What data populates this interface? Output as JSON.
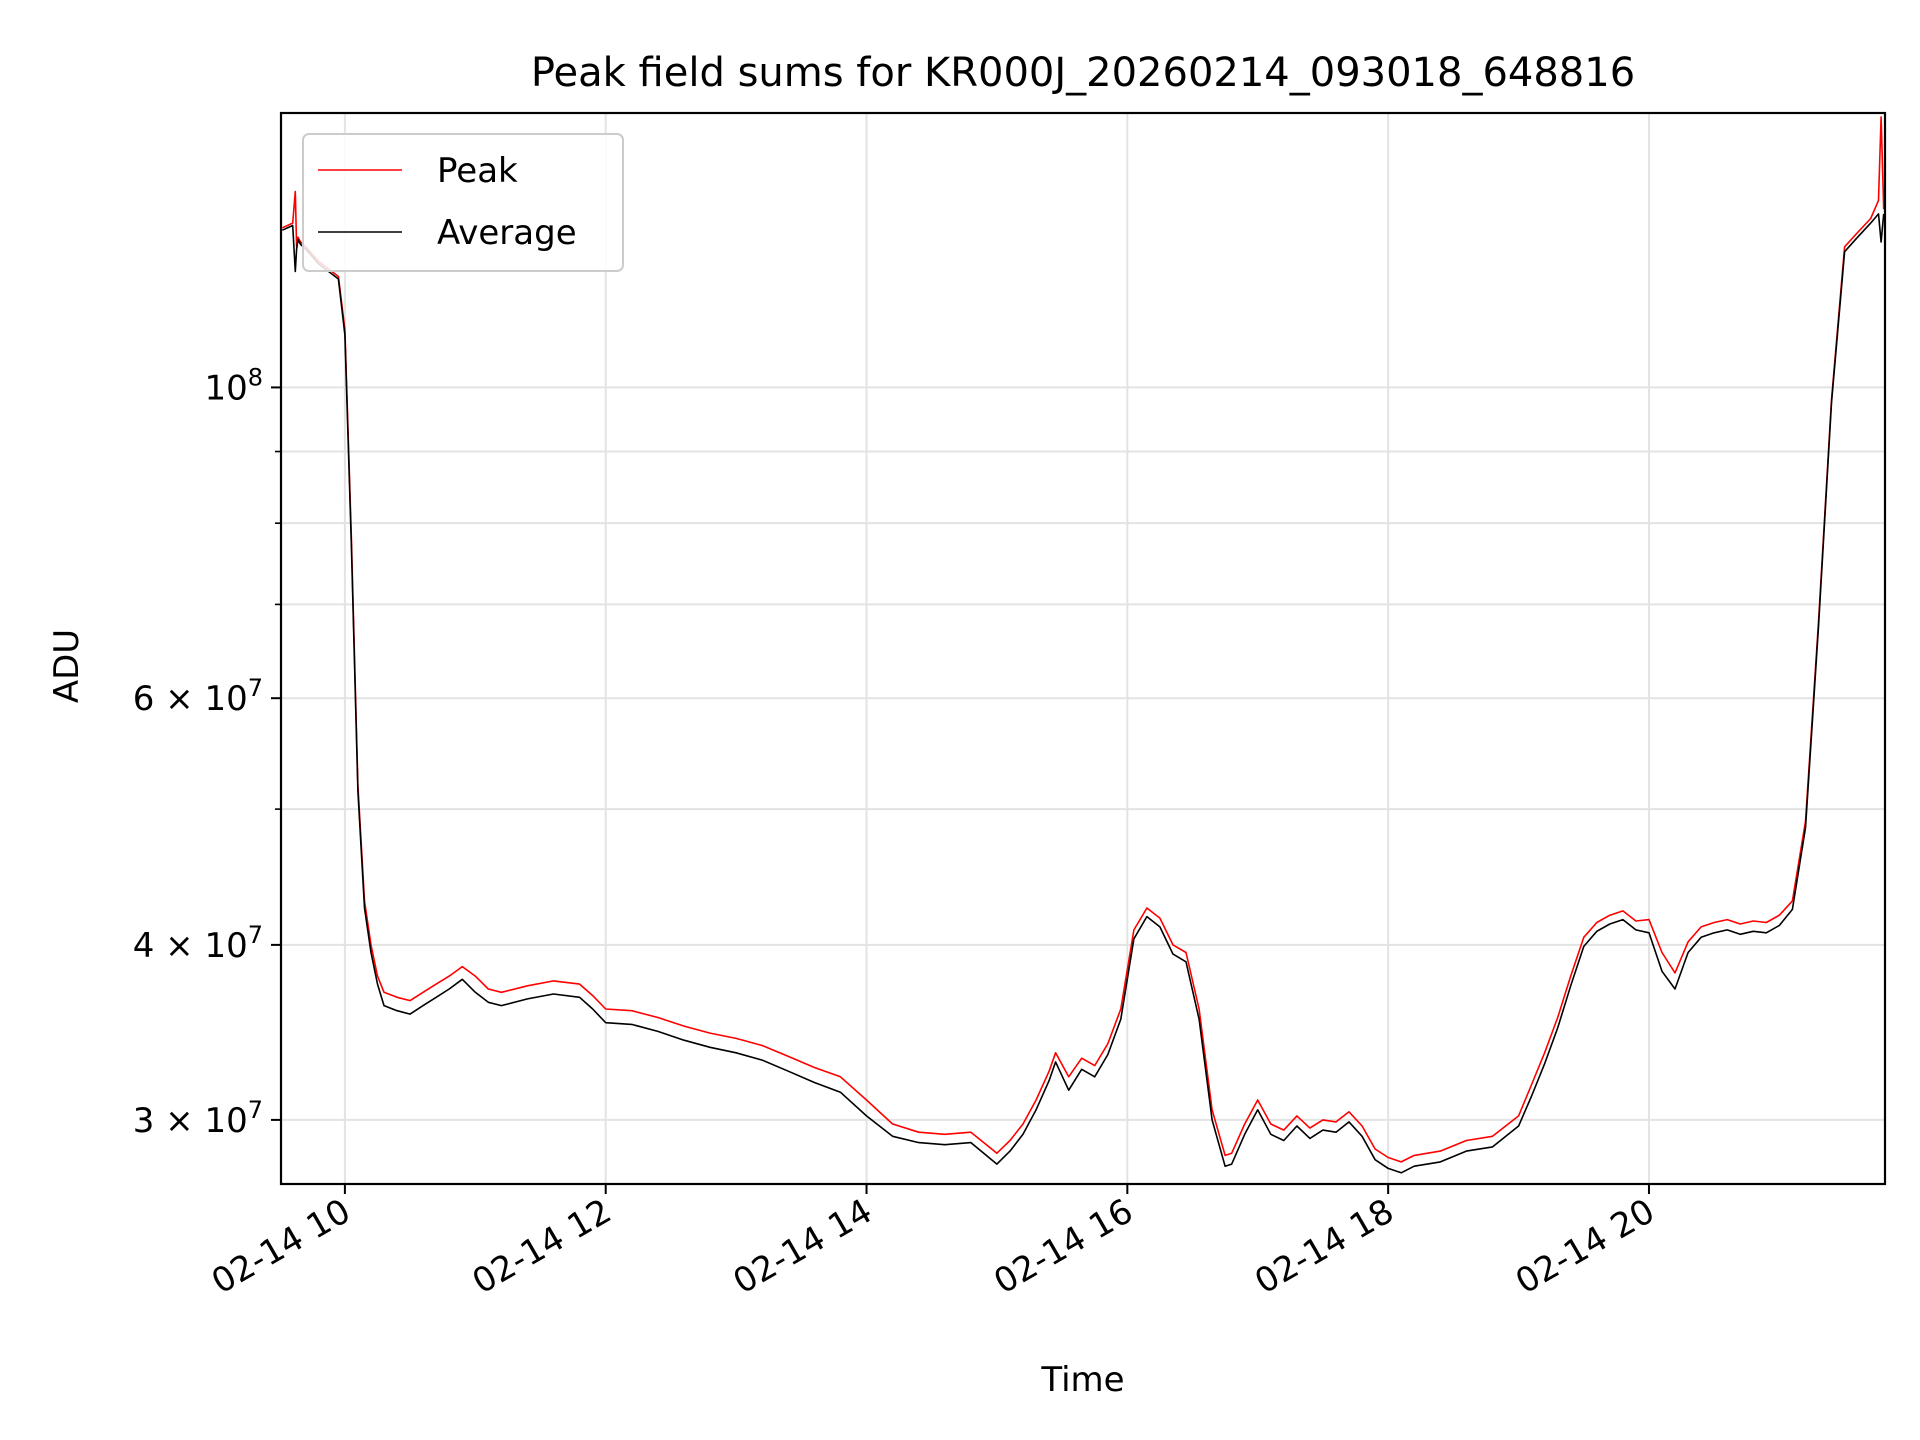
{
  "colors": {
    "peak": "#ff0000",
    "average": "#000000",
    "grid": "#e3e3e3",
    "frame": "#000000"
  },
  "chart_data": {
    "type": "line",
    "title": "Peak field sums for KR000J_20260214_093018_648816",
    "xlabel": "Time",
    "ylabel": "ADU",
    "yscale": "log",
    "grid": true,
    "legend_position": "top-left",
    "x_unit": "hours since 02-14 00:00",
    "xlim": [
      9.51,
      21.81
    ],
    "ylim": [
      27000000,
      157000000
    ],
    "x_ticks": [
      10,
      12,
      14,
      16,
      18,
      20
    ],
    "x_tick_labels": [
      "02-14 10",
      "02-14 12",
      "02-14 14",
      "02-14 16",
      "02-14 18",
      "02-14 20"
    ],
    "y_major_ticks": [
      {
        "value": 100000000,
        "base": "10",
        "exp": "8",
        "mantissa": ""
      },
      {
        "value": 60000000,
        "base": "10",
        "exp": "7",
        "mantissa": "6 × "
      },
      {
        "value": 40000000,
        "base": "10",
        "exp": "7",
        "mantissa": "4 × "
      },
      {
        "value": 30000000,
        "base": "10",
        "exp": "7",
        "mantissa": "3 × "
      }
    ],
    "y_minor_ticks": [
      50000000,
      70000000,
      80000000,
      90000000
    ],
    "series": [
      {
        "name": "Peak",
        "x": [
          9.52,
          9.6,
          9.62,
          9.63,
          9.64,
          9.66,
          9.7,
          9.8,
          9.9,
          9.95,
          10.0,
          10.05,
          10.1,
          10.15,
          10.2,
          10.25,
          10.3,
          10.4,
          10.5,
          10.6,
          10.7,
          10.8,
          10.9,
          11.0,
          11.1,
          11.2,
          11.4,
          11.6,
          11.8,
          11.9,
          12.0,
          12.2,
          12.4,
          12.6,
          12.8,
          13.0,
          13.2,
          13.4,
          13.6,
          13.8,
          14.0,
          14.2,
          14.4,
          14.6,
          14.8,
          15.0,
          15.1,
          15.2,
          15.3,
          15.4,
          15.45,
          15.55,
          15.65,
          15.75,
          15.85,
          15.95,
          16.05,
          16.15,
          16.25,
          16.35,
          16.45,
          16.55,
          16.65,
          16.75,
          16.8,
          16.9,
          17.0,
          17.1,
          17.2,
          17.3,
          17.4,
          17.5,
          17.6,
          17.7,
          17.8,
          17.9,
          18.0,
          18.1,
          18.2,
          18.4,
          18.6,
          18.8,
          19.0,
          19.1,
          19.2,
          19.3,
          19.4,
          19.5,
          19.6,
          19.7,
          19.8,
          19.9,
          20.0,
          20.1,
          20.2,
          20.3,
          20.4,
          20.5,
          20.6,
          20.7,
          20.8,
          20.9,
          21.0,
          21.1,
          21.2,
          21.3,
          21.4,
          21.5,
          21.6,
          21.7,
          21.76,
          21.78,
          21.8
        ],
        "y": [
          130000000,
          131000000,
          138000000,
          126000000,
          128000000,
          127000000,
          126000000,
          123000000,
          121000000,
          120000000,
          110000000,
          78000000,
          52000000,
          43000000,
          40000000,
          38000000,
          37000000,
          36700000,
          36500000,
          37000000,
          37500000,
          38000000,
          38600000,
          38000000,
          37200000,
          37000000,
          37400000,
          37700000,
          37500000,
          36800000,
          36000000,
          35900000,
          35500000,
          35000000,
          34600000,
          34300000,
          33900000,
          33300000,
          32700000,
          32200000,
          31000000,
          29800000,
          29400000,
          29300000,
          29400000,
          28400000,
          29000000,
          29800000,
          31000000,
          32500000,
          33500000,
          32200000,
          33200000,
          32800000,
          34000000,
          36000000,
          41000000,
          42500000,
          41800000,
          40000000,
          39500000,
          36000000,
          30500000,
          28300000,
          28400000,
          29800000,
          31000000,
          29800000,
          29500000,
          30200000,
          29600000,
          30000000,
          29900000,
          30400000,
          29700000,
          28600000,
          28200000,
          28000000,
          28300000,
          28500000,
          29000000,
          29200000,
          30200000,
          31800000,
          33500000,
          35500000,
          38000000,
          40500000,
          41500000,
          42000000,
          42300000,
          41600000,
          41700000,
          39500000,
          38200000,
          40200000,
          41200000,
          41500000,
          41700000,
          41400000,
          41600000,
          41500000,
          42000000,
          43000000,
          49000000,
          68000000,
          98000000,
          126000000,
          129000000,
          132000000,
          136000000,
          156000000,
          134000000
        ]
      },
      {
        "name": "Average",
        "x": [
          9.52,
          9.6,
          9.62,
          9.63,
          9.64,
          9.66,
          9.7,
          9.8,
          9.9,
          9.95,
          10.0,
          10.05,
          10.1,
          10.15,
          10.2,
          10.25,
          10.3,
          10.4,
          10.5,
          10.6,
          10.7,
          10.8,
          10.9,
          11.0,
          11.1,
          11.2,
          11.4,
          11.6,
          11.8,
          11.9,
          12.0,
          12.2,
          12.4,
          12.6,
          12.8,
          13.0,
          13.2,
          13.4,
          13.6,
          13.8,
          14.0,
          14.2,
          14.4,
          14.6,
          14.8,
          15.0,
          15.1,
          15.2,
          15.3,
          15.4,
          15.45,
          15.55,
          15.65,
          15.75,
          15.85,
          15.95,
          16.05,
          16.15,
          16.25,
          16.35,
          16.45,
          16.55,
          16.65,
          16.75,
          16.8,
          16.9,
          17.0,
          17.1,
          17.2,
          17.3,
          17.4,
          17.5,
          17.6,
          17.7,
          17.8,
          17.9,
          18.0,
          18.1,
          18.2,
          18.4,
          18.6,
          18.8,
          19.0,
          19.1,
          19.2,
          19.3,
          19.4,
          19.5,
          19.6,
          19.7,
          19.8,
          19.9,
          20.0,
          20.1,
          20.2,
          20.3,
          20.4,
          20.5,
          20.6,
          20.7,
          20.8,
          20.9,
          21.0,
          21.1,
          21.2,
          21.3,
          21.4,
          21.5,
          21.6,
          21.7,
          21.76,
          21.78,
          21.8
        ],
        "y": [
          129500000,
          130500000,
          121000000,
          125500000,
          127500000,
          126500000,
          125500000,
          122500000,
          120500000,
          119500000,
          109000000,
          77000000,
          51500000,
          42500000,
          39500000,
          37500000,
          36200000,
          35900000,
          35700000,
          36200000,
          36700000,
          37200000,
          37800000,
          37000000,
          36400000,
          36200000,
          36600000,
          36900000,
          36700000,
          36000000,
          35200000,
          35100000,
          34700000,
          34200000,
          33800000,
          33500000,
          33100000,
          32500000,
          31900000,
          31400000,
          30200000,
          29200000,
          28900000,
          28800000,
          28900000,
          27900000,
          28500000,
          29300000,
          30500000,
          32000000,
          33000000,
          31500000,
          32600000,
          32200000,
          33400000,
          35400000,
          40400000,
          41900000,
          41200000,
          39400000,
          38900000,
          35400000,
          30000000,
          27800000,
          27900000,
          29300000,
          30500000,
          29300000,
          29000000,
          29700000,
          29100000,
          29500000,
          29400000,
          29900000,
          29200000,
          28100000,
          27700000,
          27500000,
          27800000,
          28000000,
          28500000,
          28700000,
          29700000,
          31200000,
          32900000,
          34900000,
          37400000,
          39900000,
          40900000,
          41400000,
          41700000,
          41000000,
          40800000,
          38300000,
          37200000,
          39500000,
          40500000,
          40800000,
          41000000,
          40700000,
          40900000,
          40800000,
          41300000,
          42400000,
          48500000,
          67500000,
          97500000,
          125000000,
          128000000,
          131000000,
          133000000,
          127000000,
          133000000
        ]
      }
    ]
  }
}
